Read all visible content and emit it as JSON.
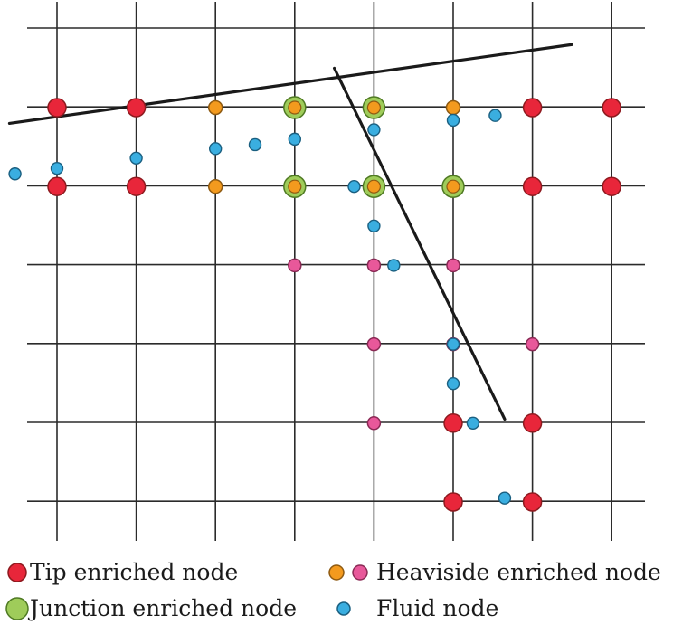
{
  "grid": {
    "columns": 8,
    "rows": 6,
    "line_color": "#2b2b2b"
  },
  "crack": {
    "color": "#1a1a1a",
    "main_branch": [
      [
        -0.6,
        1.2
      ],
      [
        6.5,
        0.2
      ]
    ],
    "secondary_branch": [
      [
        3.5,
        0.5
      ],
      [
        5.65,
        4.95
      ]
    ]
  },
  "node_styles": {
    "tip": {
      "fill": "#e8263a",
      "stroke": "#8e1a1f"
    },
    "heaviside": {
      "fill": "#f39a1e",
      "stroke": "#8e5a12"
    },
    "heaviside_alt": {
      "fill": "#e8589a",
      "stroke": "#8a2a55"
    },
    "junction": {
      "outer_fill": "#9fcc5a",
      "outer_stroke": "#4f7a23",
      "inner_fill": "#f39a1e",
      "inner_stroke": "#8e5a12"
    },
    "fluid": {
      "fill": "#3aaee0",
      "stroke": "#1a5f80"
    }
  },
  "nodes": {
    "tip": [
      [
        0,
        1
      ],
      [
        1,
        1
      ],
      [
        6,
        1
      ],
      [
        7,
        1
      ],
      [
        0,
        2
      ],
      [
        1,
        2
      ],
      [
        6,
        2
      ],
      [
        7,
        2
      ],
      [
        5,
        5
      ],
      [
        6,
        5
      ],
      [
        5,
        6
      ],
      [
        6,
        6
      ]
    ],
    "heaviside": [
      [
        2,
        1
      ],
      [
        5,
        1
      ],
      [
        2,
        2
      ]
    ],
    "heaviside_alt": [
      [
        3,
        3
      ],
      [
        4,
        3
      ],
      [
        5,
        3
      ],
      [
        4,
        4
      ],
      [
        5,
        4
      ],
      [
        6,
        4
      ],
      [
        4,
        5
      ]
    ],
    "junction": [
      [
        3,
        1
      ],
      [
        4,
        1
      ],
      [
        3,
        2
      ],
      [
        4,
        2
      ],
      [
        5,
        2
      ]
    ],
    "fluid": [
      [
        -0.53,
        1.84
      ],
      [
        0,
        1.77
      ],
      [
        1,
        1.64
      ],
      [
        2,
        1.52
      ],
      [
        2.5,
        1.47
      ],
      [
        3,
        1.4
      ],
      [
        4,
        1.28
      ],
      [
        5,
        1.16
      ],
      [
        5.53,
        1.1
      ],
      [
        3.75,
        2
      ],
      [
        4,
        2.5
      ],
      [
        4.25,
        3
      ],
      [
        5,
        4
      ],
      [
        5,
        4.5
      ],
      [
        5.25,
        5
      ],
      [
        5.65,
        5.95
      ]
    ]
  },
  "legend": {
    "tip_label": "Tip enriched node",
    "heaviside_label": "Heaviside enriched node",
    "junction_label": "Junction enriched node",
    "fluid_label": "Fluid node"
  }
}
